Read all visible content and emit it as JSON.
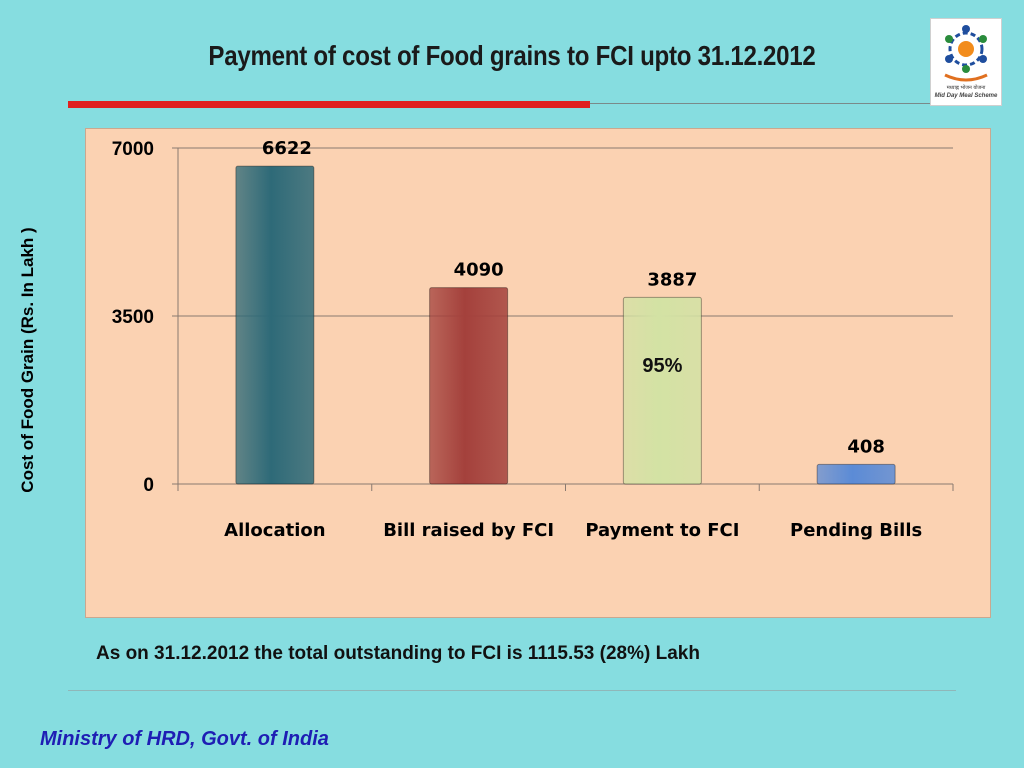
{
  "slide": {
    "title": "Payment of cost of Food grains to FCI upto 31.12.2012",
    "note": "As on 31.12.2012 the total outstanding to FCI is 1115.53 (28%) Lakh",
    "footer": "Ministry of HRD, Govt. of India",
    "logo": {
      "caption_hindi": "मध्याह्न भोजन योजना",
      "caption_english": "Mid Day Meal Scheme"
    }
  },
  "chart_data": {
    "type": "bar",
    "title": "",
    "ylabel": "Cost of Food Grain (Rs. In Lakh )",
    "xlabel": "",
    "categories": [
      "Allocation",
      "Bill raised by FCI",
      "Payment to FCI",
      "Pending Bills"
    ],
    "values": [
      6622,
      4090,
      3887,
      408
    ],
    "data_labels": [
      "6622",
      "4090",
      "3887",
      "408"
    ],
    "bar_colors": [
      "#2E6A78",
      "#A4413C",
      "#D3E2A4",
      "#5B8BD6"
    ],
    "annotation": {
      "text": "95%",
      "category": "Payment to FCI"
    },
    "ylim": [
      0,
      7000
    ],
    "yticks": [
      "0",
      "3500",
      "7000"
    ],
    "grid": true
  }
}
